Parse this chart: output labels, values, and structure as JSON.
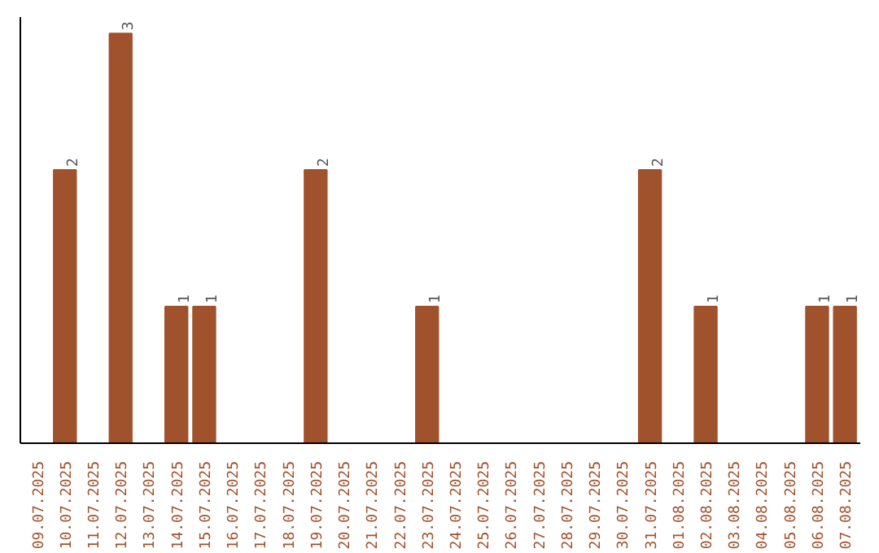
{
  "chart_data": {
    "type": "bar",
    "categories": [
      "09.07.2025",
      "10.07.2025",
      "11.07.2025",
      "12.07.2025",
      "13.07.2025",
      "14.07.2025",
      "15.07.2025",
      "16.07.2025",
      "17.07.2025",
      "18.07.2025",
      "19.07.2025",
      "20.07.2025",
      "21.07.2025",
      "22.07.2025",
      "23.07.2025",
      "24.07.2025",
      "25.07.2025",
      "26.07.2025",
      "27.07.2025",
      "28.07.2025",
      "29.07.2025",
      "30.07.2025",
      "31.07.2025",
      "01.08.2025",
      "02.08.2025",
      "03.08.2025",
      "04.08.2025",
      "05.08.2025",
      "06.08.2025",
      "07.08.2025"
    ],
    "values": [
      0,
      2,
      0,
      3,
      0,
      1,
      1,
      0,
      0,
      0,
      2,
      0,
      0,
      0,
      1,
      0,
      0,
      0,
      0,
      0,
      0,
      0,
      2,
      0,
      1,
      0,
      0,
      0,
      1,
      1
    ],
    "value_labels": [
      null,
      "2",
      null,
      "3",
      null,
      "1",
      "1",
      null,
      null,
      null,
      "2",
      null,
      null,
      null,
      "1",
      null,
      null,
      null,
      null,
      null,
      null,
      null,
      "2",
      null,
      "1",
      null,
      null,
      null,
      "1",
      "1"
    ],
    "color": "#a0522d",
    "grid": false,
    "tick_labels": "x"
  }
}
